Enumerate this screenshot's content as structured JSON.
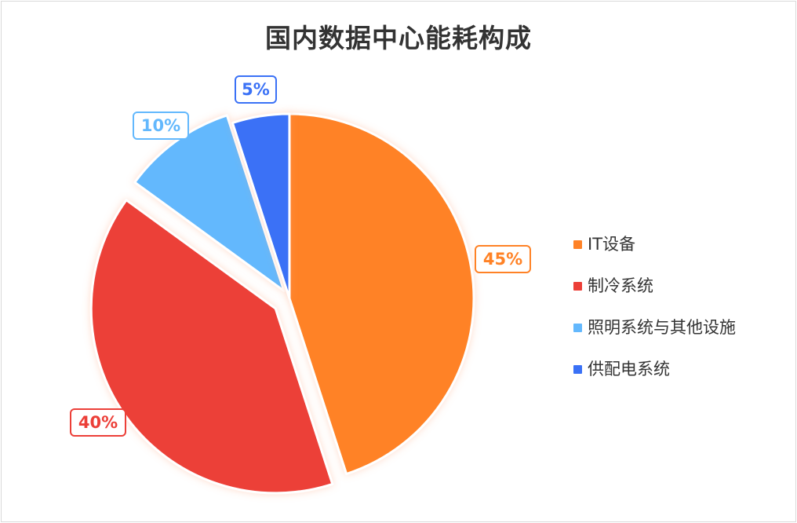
{
  "chart_data": {
    "type": "pie",
    "title": "国内数据中心能耗构成",
    "slices": [
      {
        "name": "IT设备",
        "value": 45,
        "label": "45%",
        "color": "#ff8226"
      },
      {
        "name": "制冷系统",
        "value": 40,
        "label": "40%",
        "color": "#ec3f38"
      },
      {
        "name": "照明系统与其他设施",
        "value": 10,
        "label": "10%",
        "color": "#63b8fd"
      },
      {
        "name": "供配电系统",
        "value": 5,
        "label": "5%",
        "color": "#3a71f6"
      }
    ],
    "legend_position": "right"
  }
}
